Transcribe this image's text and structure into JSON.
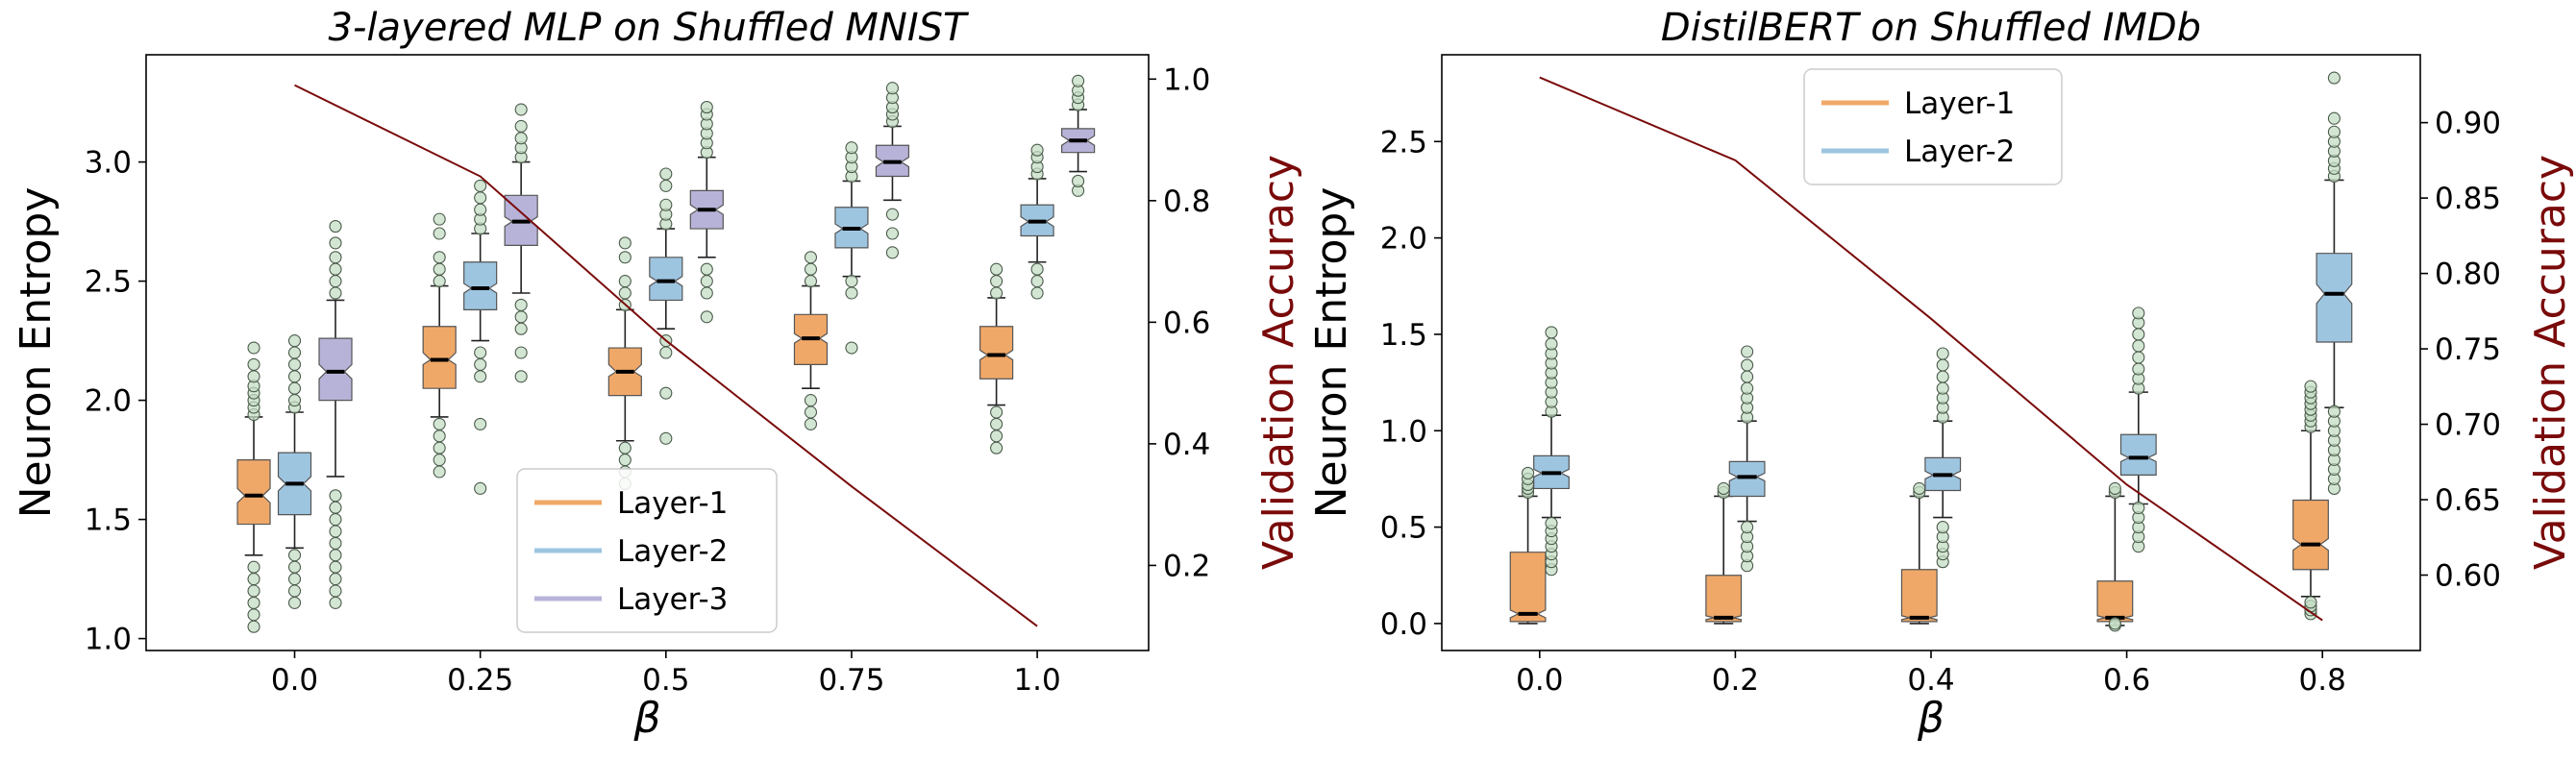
{
  "chart_data": [
    {
      "type": "box",
      "title": "3-layered MLP on Shuffled MNIST",
      "xlabel": "β",
      "ylabel": "Neuron Entropy",
      "y2label": "Validation Accuracy",
      "xticks": [
        "0.0",
        "0.25",
        "0.5",
        "0.75",
        "1.0"
      ],
      "xlim": [
        -0.2,
        1.15
      ],
      "ylim": [
        0.95,
        3.45
      ],
      "y2lim": [
        0.06,
        1.04
      ],
      "yticks": [
        "1.0",
        "1.5",
        "2.0",
        "2.5",
        "3.0"
      ],
      "y2ticks": [
        "0.2",
        "0.4",
        "0.6",
        "0.8",
        "1.0"
      ],
      "legend_position": "lower center",
      "series": [
        {
          "name": "Layer-1",
          "color": "#f0a868",
          "boxes": [
            {
              "x": 0.0,
              "q1": 1.48,
              "median": 1.6,
              "q3": 1.75,
              "notch": [
                1.57,
                1.63
              ],
              "whislo": 1.35,
              "whishi": 1.93,
              "fliers": [
                1.05,
                1.1,
                1.15,
                1.2,
                1.25,
                1.3,
                1.94,
                1.97,
                2.0,
                2.03,
                2.06,
                2.1,
                2.15,
                2.22
              ]
            },
            {
              "x": 0.25,
              "q1": 2.05,
              "median": 2.17,
              "q3": 2.31,
              "notch": [
                2.15,
                2.2
              ],
              "whislo": 1.93,
              "whishi": 2.48,
              "fliers": [
                1.7,
                1.75,
                1.8,
                1.85,
                1.9,
                2.5,
                2.55,
                2.6,
                2.7,
                2.76
              ]
            },
            {
              "x": 0.5,
              "q1": 2.02,
              "median": 2.12,
              "q3": 2.22,
              "notch": [
                2.1,
                2.15
              ],
              "whislo": 1.83,
              "whishi": 2.38,
              "fliers": [
                1.65,
                1.7,
                1.75,
                1.8,
                2.4,
                2.45,
                2.5,
                2.6,
                2.66
              ]
            },
            {
              "x": 0.75,
              "q1": 2.15,
              "median": 2.26,
              "q3": 2.36,
              "notch": [
                2.24,
                2.28
              ],
              "whislo": 2.05,
              "whishi": 2.48,
              "fliers": [
                1.9,
                1.95,
                2.0,
                2.5,
                2.55,
                2.6
              ]
            },
            {
              "x": 1.0,
              "q1": 2.09,
              "median": 2.19,
              "q3": 2.31,
              "notch": [
                2.17,
                2.21
              ],
              "whislo": 1.98,
              "whishi": 2.43,
              "fliers": [
                1.8,
                1.85,
                1.9,
                1.95,
                2.45,
                2.5,
                2.55
              ]
            }
          ]
        },
        {
          "name": "Layer-2",
          "color": "#9ec5e0",
          "boxes": [
            {
              "x": 0.0,
              "q1": 1.52,
              "median": 1.65,
              "q3": 1.78,
              "notch": [
                1.62,
                1.68
              ],
              "whislo": 1.38,
              "whishi": 1.95,
              "fliers": [
                1.15,
                1.2,
                1.25,
                1.3,
                1.35,
                1.97,
                2.0,
                2.05,
                2.1,
                2.15,
                2.2,
                2.25
              ]
            },
            {
              "x": 0.25,
              "q1": 2.38,
              "median": 2.47,
              "q3": 2.58,
              "notch": [
                2.45,
                2.49
              ],
              "whislo": 2.25,
              "whishi": 2.7,
              "fliers": [
                1.63,
                1.9,
                2.1,
                2.15,
                2.2,
                2.72,
                2.76,
                2.8,
                2.85,
                2.9
              ]
            },
            {
              "x": 0.5,
              "q1": 2.42,
              "median": 2.5,
              "q3": 2.6,
              "notch": [
                2.48,
                2.52
              ],
              "whislo": 2.3,
              "whishi": 2.72,
              "fliers": [
                1.84,
                2.03,
                2.2,
                2.25,
                2.74,
                2.78,
                2.82,
                2.9,
                2.95
              ]
            },
            {
              "x": 0.75,
              "q1": 2.64,
              "median": 2.72,
              "q3": 2.81,
              "notch": [
                2.7,
                2.74
              ],
              "whislo": 2.52,
              "whishi": 2.92,
              "fliers": [
                2.22,
                2.45,
                2.5,
                2.94,
                2.98,
                3.02,
                3.06
              ]
            },
            {
              "x": 1.0,
              "q1": 2.69,
              "median": 2.75,
              "q3": 2.82,
              "notch": [
                2.73,
                2.77
              ],
              "whislo": 2.58,
              "whishi": 2.93,
              "fliers": [
                2.45,
                2.5,
                2.55,
                2.95,
                2.98,
                3.02,
                3.05
              ]
            }
          ]
        },
        {
          "name": "Layer-3",
          "color": "#b7b3d8",
          "boxes": [
            {
              "x": 0.0,
              "q1": 2.0,
              "median": 2.12,
              "q3": 2.26,
              "notch": [
                2.09,
                2.15
              ],
              "whislo": 1.68,
              "whishi": 2.42,
              "fliers": [
                1.15,
                1.2,
                1.25,
                1.3,
                1.35,
                1.4,
                1.45,
                1.5,
                1.55,
                1.6,
                2.45,
                2.5,
                2.55,
                2.6,
                2.66,
                2.73
              ]
            },
            {
              "x": 0.25,
              "q1": 2.65,
              "median": 2.75,
              "q3": 2.86,
              "notch": [
                2.73,
                2.77
              ],
              "whislo": 2.45,
              "whishi": 3.0,
              "fliers": [
                2.1,
                2.2,
                2.3,
                2.35,
                2.4,
                3.02,
                3.06,
                3.1,
                3.15,
                3.22
              ]
            },
            {
              "x": 0.5,
              "q1": 2.72,
              "median": 2.8,
              "q3": 2.88,
              "notch": [
                2.78,
                2.82
              ],
              "whislo": 2.6,
              "whishi": 3.02,
              "fliers": [
                2.35,
                2.45,
                2.5,
                2.55,
                3.04,
                3.08,
                3.12,
                3.16,
                3.2,
                3.23
              ]
            },
            {
              "x": 0.75,
              "q1": 2.94,
              "median": 3.0,
              "q3": 3.07,
              "notch": [
                2.98,
                3.02
              ],
              "whislo": 2.84,
              "whishi": 3.15,
              "fliers": [
                2.62,
                2.7,
                2.78,
                3.17,
                3.2,
                3.23,
                3.27,
                3.31
              ]
            },
            {
              "x": 1.0,
              "q1": 3.04,
              "median": 3.09,
              "q3": 3.14,
              "notch": [
                3.07,
                3.11
              ],
              "whislo": 2.96,
              "whishi": 3.22,
              "fliers": [
                2.88,
                2.92,
                3.24,
                3.27,
                3.3,
                3.34
              ]
            }
          ]
        }
      ],
      "accuracy_line": {
        "color": "#7a0a0a",
        "x": [
          0.0,
          0.25,
          0.5,
          0.75,
          1.0
        ],
        "y": [
          0.99,
          0.84,
          0.57,
          0.33,
          0.1
        ]
      }
    },
    {
      "type": "box",
      "title": "DistilBERT on Shuffled IMDb",
      "xlabel": "β",
      "ylabel": "Neuron Entropy",
      "y2label": "Validation Accuracy",
      "xticks": [
        "0.0",
        "0.2",
        "0.4",
        "0.6",
        "0.8"
      ],
      "xlim": [
        -0.1,
        0.9
      ],
      "ylim": [
        -0.14,
        2.95
      ],
      "y2lim": [
        0.55,
        0.945
      ],
      "yticks": [
        "0.0",
        "0.5",
        "1.0",
        "1.5",
        "2.0",
        "2.5"
      ],
      "y2ticks": [
        "0.60",
        "0.65",
        "0.70",
        "0.75",
        "0.80",
        "0.85",
        "0.90"
      ],
      "legend_position": "upper left",
      "series": [
        {
          "name": "Layer-1",
          "color": "#f0a868",
          "boxes": [
            {
              "x": 0.0,
              "q1": 0.01,
              "median": 0.05,
              "q3": 0.37,
              "notch": [
                0.03,
                0.07
              ],
              "whislo": 0.0,
              "whishi": 0.66,
              "fliers": [
                0.68,
                0.7,
                0.72,
                0.75,
                0.78
              ]
            },
            {
              "x": 0.2,
              "q1": 0.01,
              "median": 0.03,
              "q3": 0.25,
              "notch": [
                0.02,
                0.04
              ],
              "whislo": 0.0,
              "whishi": 0.66,
              "fliers": [
                0.68,
                0.7
              ]
            },
            {
              "x": 0.4,
              "q1": 0.01,
              "median": 0.03,
              "q3": 0.28,
              "notch": [
                0.02,
                0.04
              ],
              "whislo": 0.0,
              "whishi": 0.66,
              "fliers": [
                0.68,
                0.7
              ]
            },
            {
              "x": 0.6,
              "q1": 0.01,
              "median": 0.03,
              "q3": 0.22,
              "notch": [
                0.02,
                0.04
              ],
              "whislo": -0.01,
              "whishi": 0.66,
              "fliers": [
                -0.01,
                0.0,
                0.68,
                0.7
              ]
            },
            {
              "x": 0.8,
              "q1": 0.28,
              "median": 0.41,
              "q3": 0.64,
              "notch": [
                0.38,
                0.44
              ],
              "whislo": 0.14,
              "whishi": 1.0,
              "fliers": [
                0.05,
                0.07,
                0.09,
                0.11,
                1.02,
                1.05,
                1.08,
                1.11,
                1.14,
                1.17,
                1.2,
                1.23
              ]
            }
          ]
        },
        {
          "name": "Layer-2",
          "color": "#9ec5e0",
          "boxes": [
            {
              "x": 0.0,
              "q1": 0.7,
              "median": 0.78,
              "q3": 0.87,
              "notch": [
                0.76,
                0.8
              ],
              "whislo": 0.55,
              "whishi": 1.08,
              "fliers": [
                0.28,
                0.32,
                0.36,
                0.4,
                0.44,
                0.48,
                0.52,
                1.1,
                1.15,
                1.2,
                1.25,
                1.3,
                1.35,
                1.4,
                1.45,
                1.51
              ]
            },
            {
              "x": 0.2,
              "q1": 0.66,
              "median": 0.76,
              "q3": 0.84,
              "notch": [
                0.74,
                0.78
              ],
              "whislo": 0.53,
              "whishi": 1.05,
              "fliers": [
                0.3,
                0.35,
                0.4,
                0.45,
                0.5,
                1.07,
                1.12,
                1.17,
                1.22,
                1.28,
                1.34,
                1.41
              ]
            },
            {
              "x": 0.4,
              "q1": 0.69,
              "median": 0.77,
              "q3": 0.86,
              "notch": [
                0.75,
                0.79
              ],
              "whislo": 0.55,
              "whishi": 1.05,
              "fliers": [
                0.32,
                0.36,
                0.4,
                0.45,
                0.5,
                1.07,
                1.12,
                1.17,
                1.22,
                1.28,
                1.34,
                1.4
              ]
            },
            {
              "x": 0.6,
              "q1": 0.77,
              "median": 0.86,
              "q3": 0.98,
              "notch": [
                0.84,
                0.88
              ],
              "whislo": 0.62,
              "whishi": 1.2,
              "fliers": [
                0.4,
                0.45,
                0.5,
                0.55,
                0.6,
                1.22,
                1.27,
                1.32,
                1.38,
                1.44,
                1.5,
                1.56,
                1.61
              ]
            },
            {
              "x": 0.8,
              "q1": 1.46,
              "median": 1.71,
              "q3": 1.92,
              "notch": [
                1.66,
                1.76
              ],
              "whislo": 1.12,
              "whishi": 2.3,
              "fliers": [
                0.7,
                0.75,
                0.8,
                0.85,
                0.9,
                0.95,
                1.0,
                1.05,
                1.1,
                2.32,
                2.36,
                2.4,
                2.45,
                2.5,
                2.55,
                2.62,
                2.83
              ]
            }
          ]
        }
      ],
      "accuracy_line": {
        "color": "#7a0a0a",
        "x": [
          0.0,
          0.2,
          0.4,
          0.6,
          0.8
        ],
        "y": [
          0.93,
          0.875,
          0.77,
          0.66,
          0.57
        ]
      }
    }
  ]
}
